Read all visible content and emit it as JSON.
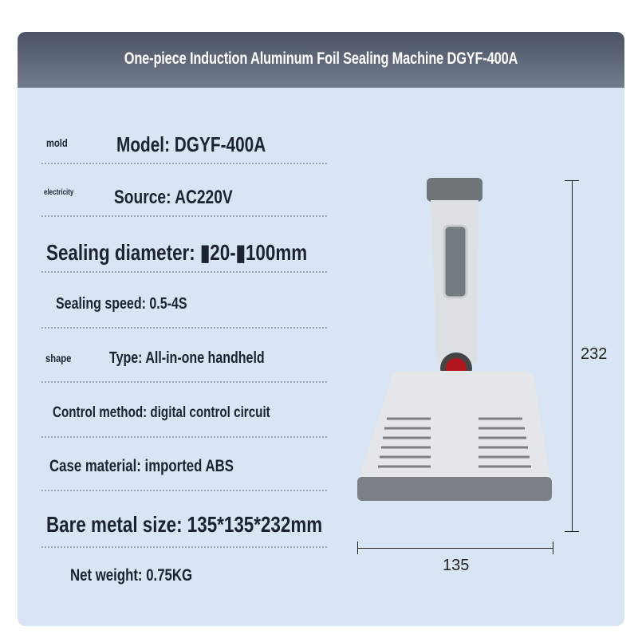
{
  "header": {
    "title": "One-piece Induction Aluminum Foil Sealing Machine DGYF-400A"
  },
  "specs": [
    {
      "label": "mold",
      "text": "Model: DGYF-400A"
    },
    {
      "label": "electricity",
      "text": "Source: AC220V"
    },
    {
      "label": "",
      "text": "Sealing diameter: ▮20-▮100mm"
    },
    {
      "label": "",
      "text": "Sealing speed: 0.5-4S"
    },
    {
      "label": "shape",
      "text": "Type: All-in-one handheld"
    },
    {
      "label": "",
      "text": "Control method: digital control circuit"
    },
    {
      "label": "",
      "text": "Case material: imported ABS"
    },
    {
      "label": "",
      "text": "Bare metal size: 135*135*232mm"
    },
    {
      "label": "",
      "text": "Net weight: 0.75KG"
    }
  ],
  "dimensions": {
    "height": "232",
    "width": "135"
  },
  "colors": {
    "panel": "#d9e5f4",
    "header": "#5c6475",
    "switch": "#b0161c"
  }
}
